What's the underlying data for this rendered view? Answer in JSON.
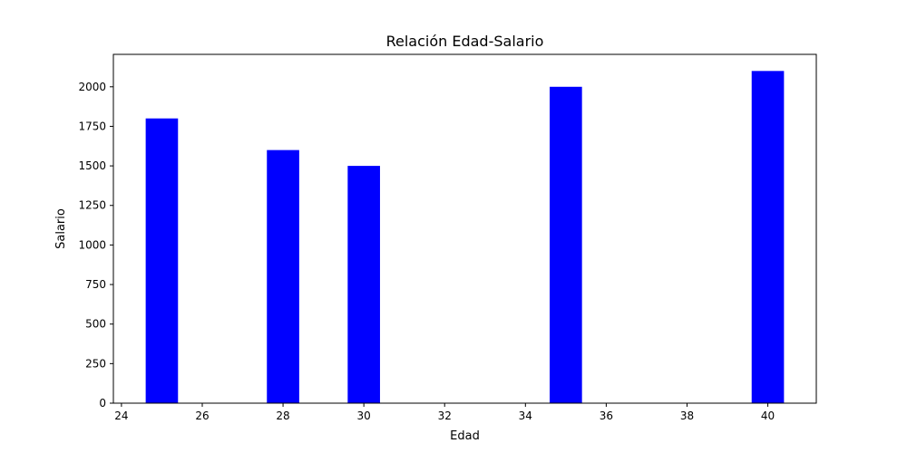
{
  "chart_data": {
    "type": "bar",
    "title": "Relación Edad-Salario",
    "xlabel": "Edad",
    "ylabel": "Salario",
    "x": [
      25,
      28,
      30,
      35,
      40
    ],
    "values": [
      1800,
      1600,
      1500,
      2000,
      2100
    ],
    "bar_width": 0.8,
    "xlim": [
      23.8,
      41.2
    ],
    "ylim": [
      0,
      2205
    ],
    "x_ticks": [
      24,
      26,
      28,
      30,
      32,
      34,
      36,
      38,
      40
    ],
    "y_ticks": [
      0,
      250,
      500,
      750,
      1000,
      1250,
      1500,
      1750,
      2000
    ],
    "bar_color": "#0000ff",
    "grid": false,
    "legend": null
  }
}
